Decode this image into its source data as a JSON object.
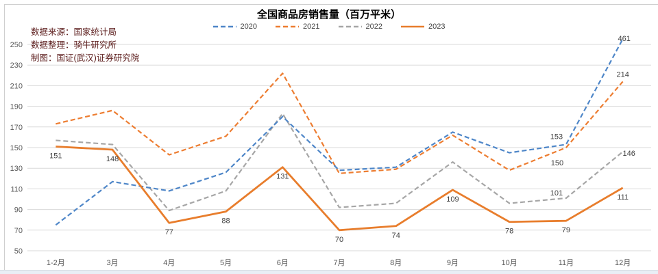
{
  "annotations": {
    "source_line": "数据来源：国家统计局",
    "org_line": "数据整理：骑牛研究所",
    "credit_line": "制图：国证(武汉)证券研究院"
  },
  "chart_data": {
    "type": "line",
    "title": "全国商品房销售量（百万平米）",
    "categories": [
      "1-2月",
      "3月",
      "4月",
      "5月",
      "6月",
      "7月",
      "8月",
      "9月",
      "10月",
      "11月",
      "12月"
    ],
    "ylim": [
      50,
      250
    ],
    "ytick_step": 20,
    "yticks": [
      50,
      70,
      90,
      110,
      130,
      150,
      170,
      190,
      210,
      230,
      250
    ],
    "grid": true,
    "legend_position": "top",
    "series": [
      {
        "name": "2020",
        "color": "#4e86c8",
        "style": "dashed",
        "values": [
          75,
          117,
          108,
          126,
          180,
          128,
          131,
          165,
          145,
          153,
          461
        ],
        "point_labels": [
          null,
          null,
          null,
          null,
          null,
          null,
          null,
          null,
          null,
          "153",
          "461"
        ]
      },
      {
        "name": "2021",
        "color": "#ed7d31",
        "style": "dashed",
        "values": [
          173,
          186,
          143,
          161,
          222,
          125,
          129,
          162,
          128,
          150,
          214
        ],
        "point_labels": [
          null,
          null,
          null,
          null,
          null,
          null,
          null,
          null,
          null,
          "150",
          "214"
        ]
      },
      {
        "name": "2022",
        "color": "#a6a6a6",
        "style": "dashed",
        "values": [
          157,
          153,
          89,
          108,
          183,
          92,
          96,
          136,
          96,
          101,
          146
        ],
        "point_labels": [
          null,
          null,
          null,
          null,
          null,
          null,
          null,
          null,
          null,
          "101",
          "146"
        ]
      },
      {
        "name": "2023",
        "color": "#e87d2c",
        "style": "solid",
        "values": [
          151,
          148,
          77,
          88,
          131,
          70,
          74,
          109,
          78,
          79,
          111
        ],
        "point_labels": [
          "151",
          "148",
          "77",
          "88",
          "131",
          "70",
          "74",
          "109",
          "78",
          "79",
          "111"
        ]
      }
    ]
  }
}
